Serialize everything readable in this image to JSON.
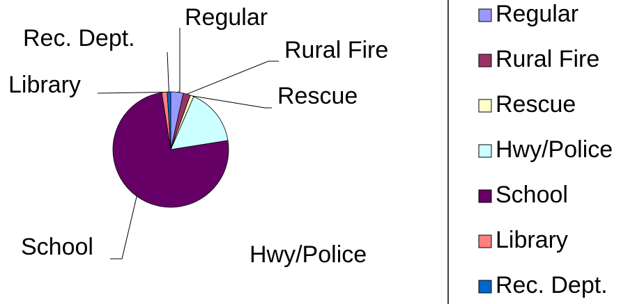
{
  "chart_data": {
    "type": "pie",
    "categories": [
      "Regular",
      "Rural Fire",
      "Rescue",
      "Hwy/Police",
      "School",
      "Library",
      "Rec. Dept."
    ],
    "values": [
      3.5,
      2,
      1,
      16,
      75,
      1.5,
      1
    ],
    "colors": [
      "#9999ff",
      "#993366",
      "#ffffcc",
      "#ccffff",
      "#660066",
      "#ff8080",
      "#0066cc"
    ],
    "legend": "right"
  }
}
